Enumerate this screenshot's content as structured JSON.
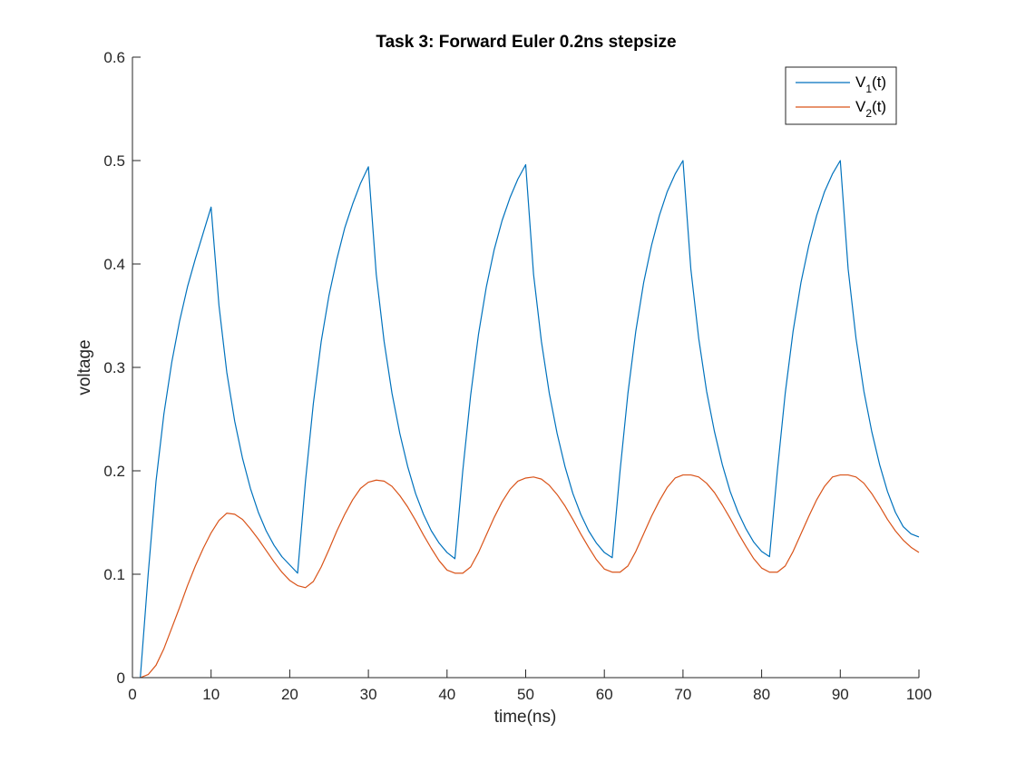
{
  "chart_data": {
    "type": "line",
    "title": "Task 3: Forward Euler 0.2ns stepsize",
    "xlabel": "time(ns)",
    "ylabel": "voltage",
    "xlim": [
      0,
      100
    ],
    "ylim": [
      0,
      0.6
    ],
    "xticks": [
      0,
      10,
      20,
      30,
      40,
      50,
      60,
      70,
      80,
      90,
      100
    ],
    "yticks": [
      0,
      0.1,
      0.2,
      0.3,
      0.4,
      0.5,
      0.6
    ],
    "xtick_labels": [
      "0",
      "10",
      "20",
      "30",
      "40",
      "50",
      "60",
      "70",
      "80",
      "90",
      "100"
    ],
    "ytick_labels": [
      "0",
      "0.1",
      "0.2",
      "0.3",
      "0.4",
      "0.5",
      "0.6"
    ],
    "grid": false,
    "legend_position": "top-right",
    "series": [
      {
        "name": "V1(t)",
        "legend_main": "V",
        "legend_sub": "1",
        "legend_suffix": "(t)",
        "color": "#0072BD",
        "x": [
          1,
          2,
          3,
          4,
          5,
          6,
          7,
          8,
          9,
          10,
          11,
          12,
          13,
          14,
          15,
          16,
          17,
          18,
          19,
          20,
          21,
          22,
          23,
          24,
          25,
          26,
          27,
          28,
          29,
          30,
          31,
          32,
          33,
          34,
          35,
          36,
          37,
          38,
          39,
          40,
          41,
          42,
          43,
          44,
          45,
          46,
          47,
          48,
          49,
          50,
          51,
          52,
          53,
          54,
          55,
          56,
          57,
          58,
          59,
          60,
          61,
          62,
          63,
          64,
          65,
          66,
          67,
          68,
          69,
          70,
          71,
          72,
          73,
          74,
          75,
          76,
          77,
          78,
          79,
          80,
          81,
          82,
          83,
          84,
          85,
          86,
          87,
          88,
          89,
          90,
          91,
          92,
          93,
          94,
          95,
          96,
          97,
          98,
          99,
          100
        ],
        "y": [
          0,
          0.1,
          0.19,
          0.255,
          0.305,
          0.345,
          0.378,
          0.405,
          0.43,
          0.455,
          0.36,
          0.295,
          0.248,
          0.212,
          0.183,
          0.16,
          0.142,
          0.128,
          0.117,
          0.109,
          0.101,
          0.19,
          0.265,
          0.325,
          0.37,
          0.405,
          0.435,
          0.458,
          0.478,
          0.494,
          0.39,
          0.325,
          0.275,
          0.236,
          0.204,
          0.178,
          0.158,
          0.142,
          0.13,
          0.121,
          0.115,
          0.2,
          0.273,
          0.332,
          0.378,
          0.414,
          0.442,
          0.464,
          0.482,
          0.496,
          0.39,
          0.325,
          0.275,
          0.236,
          0.204,
          0.178,
          0.158,
          0.142,
          0.13,
          0.121,
          0.116,
          0.2,
          0.275,
          0.335,
          0.382,
          0.418,
          0.447,
          0.47,
          0.487,
          0.5,
          0.395,
          0.328,
          0.277,
          0.238,
          0.206,
          0.18,
          0.16,
          0.144,
          0.131,
          0.122,
          0.117,
          0.2,
          0.275,
          0.335,
          0.382,
          0.418,
          0.447,
          0.47,
          0.487,
          0.5,
          0.395,
          0.328,
          0.277,
          0.238,
          0.206,
          0.18,
          0.16,
          0.146,
          0.139,
          0.136
        ]
      },
      {
        "name": "V2(t)",
        "legend_main": "V",
        "legend_sub": "2",
        "legend_suffix": "(t)",
        "color": "#D95319",
        "x": [
          1,
          2,
          3,
          4,
          5,
          6,
          7,
          8,
          9,
          10,
          11,
          12,
          13,
          14,
          15,
          16,
          17,
          18,
          19,
          20,
          21,
          22,
          23,
          24,
          25,
          26,
          27,
          28,
          29,
          30,
          31,
          32,
          33,
          34,
          35,
          36,
          37,
          38,
          39,
          40,
          41,
          42,
          43,
          44,
          45,
          46,
          47,
          48,
          49,
          50,
          51,
          52,
          53,
          54,
          55,
          56,
          57,
          58,
          59,
          60,
          61,
          62,
          63,
          64,
          65,
          66,
          67,
          68,
          69,
          70,
          71,
          72,
          73,
          74,
          75,
          76,
          77,
          78,
          79,
          80,
          81,
          82,
          83,
          84,
          85,
          86,
          87,
          88,
          89,
          90,
          91,
          92,
          93,
          94,
          95,
          96,
          97,
          98,
          99,
          100
        ],
        "y": [
          0,
          0.003,
          0.012,
          0.028,
          0.048,
          0.068,
          0.089,
          0.108,
          0.125,
          0.14,
          0.152,
          0.159,
          0.158,
          0.153,
          0.144,
          0.134,
          0.123,
          0.112,
          0.102,
          0.094,
          0.089,
          0.087,
          0.093,
          0.107,
          0.124,
          0.142,
          0.158,
          0.172,
          0.183,
          0.189,
          0.191,
          0.19,
          0.185,
          0.176,
          0.165,
          0.152,
          0.138,
          0.125,
          0.113,
          0.104,
          0.101,
          0.101,
          0.107,
          0.121,
          0.138,
          0.155,
          0.17,
          0.182,
          0.19,
          0.193,
          0.194,
          0.192,
          0.186,
          0.177,
          0.166,
          0.153,
          0.139,
          0.126,
          0.114,
          0.105,
          0.102,
          0.102,
          0.108,
          0.122,
          0.139,
          0.156,
          0.171,
          0.184,
          0.193,
          0.196,
          0.196,
          0.194,
          0.188,
          0.179,
          0.167,
          0.154,
          0.14,
          0.127,
          0.115,
          0.106,
          0.102,
          0.102,
          0.108,
          0.122,
          0.139,
          0.156,
          0.172,
          0.185,
          0.194,
          0.196,
          0.196,
          0.194,
          0.188,
          0.178,
          0.166,
          0.153,
          0.142,
          0.133,
          0.126,
          0.121
        ]
      }
    ]
  }
}
